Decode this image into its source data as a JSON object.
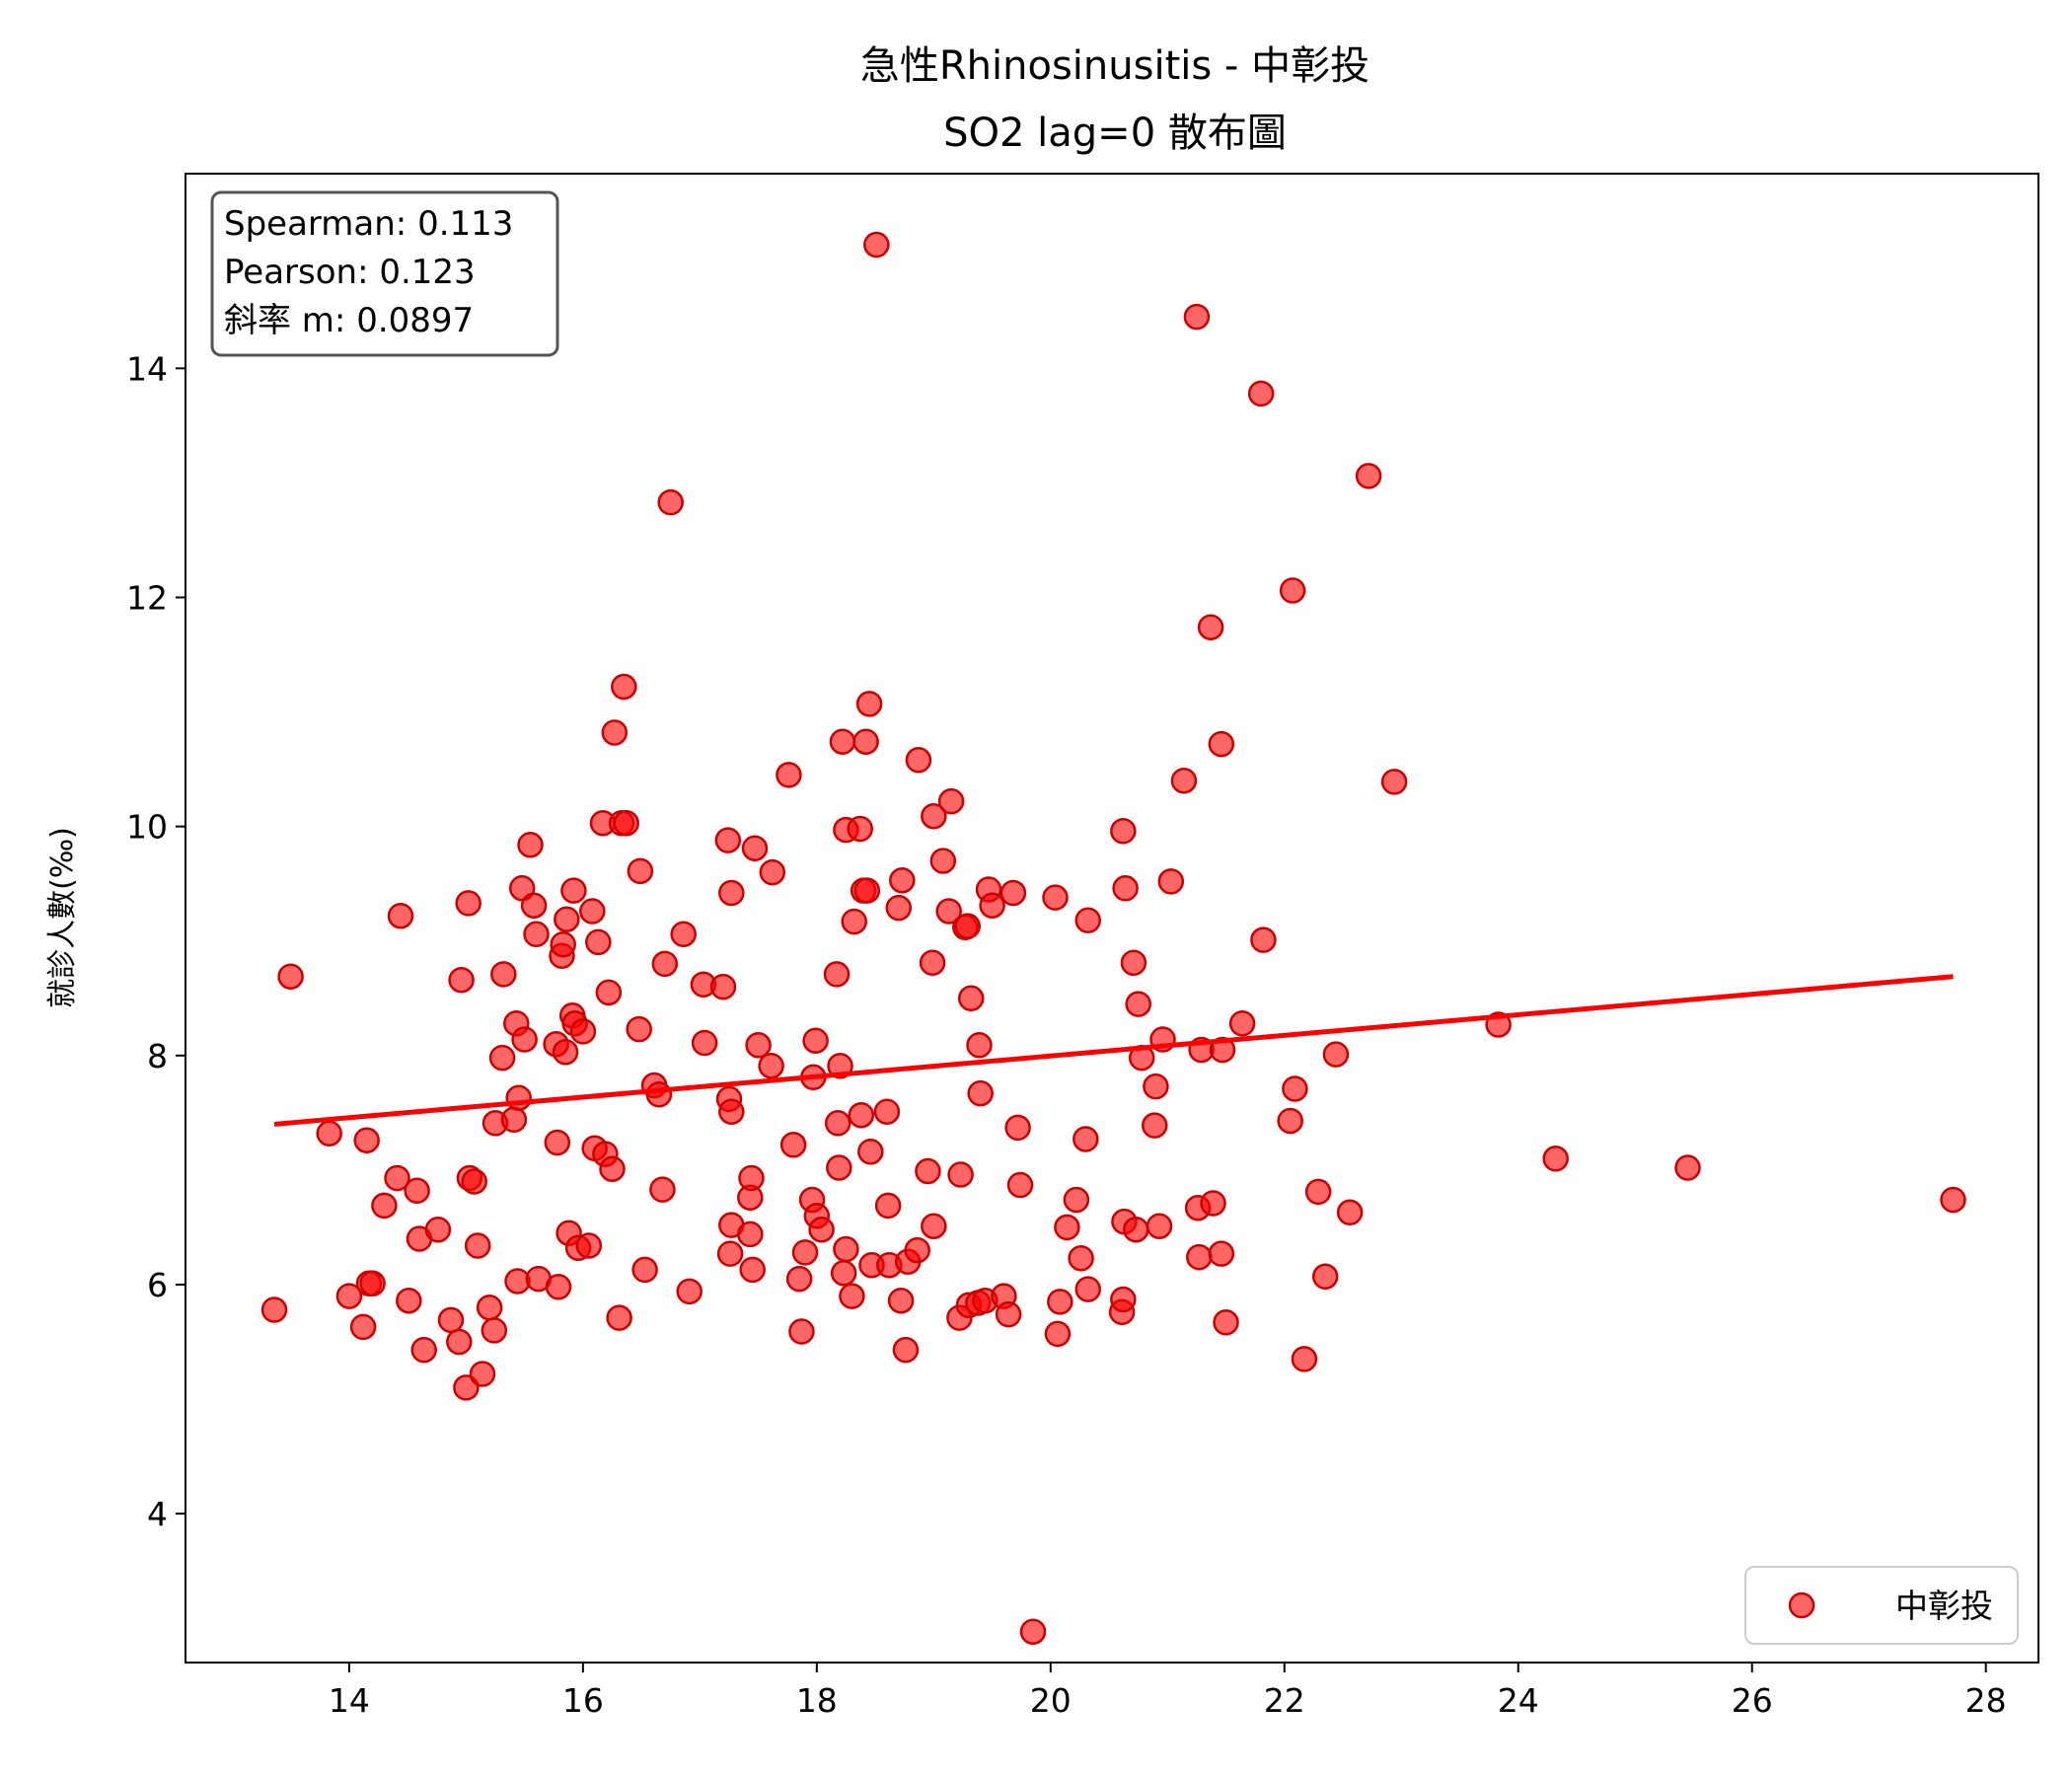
{
  "chart_data": {
    "type": "scatter",
    "title": "急性Rhinosinusitis - 中彰投",
    "subtitle": "SO2 lag=0 散布圖",
    "xlabel": "",
    "ylabel": "就診人數(‰)",
    "xlim": [
      12.6,
      28.45
    ],
    "ylim": [
      2.7,
      15.7
    ],
    "xticks": [
      14,
      16,
      18,
      20,
      22,
      24,
      26,
      28
    ],
    "yticks": [
      4,
      6,
      8,
      10,
      12,
      14
    ],
    "grid": false,
    "legend_position": "bottom-right",
    "stats": [
      "Spearman: 0.113",
      "Pearson: 0.123",
      "斜率 m: 0.0897"
    ],
    "colors": {
      "points": "#ff0000",
      "point_edge": "#cc0000",
      "trend": "#ff0000"
    },
    "trendline": {
      "x": [
        13.36,
        27.72
      ],
      "y": [
        7.4,
        8.69
      ]
    },
    "series": [
      {
        "name": "中彰投",
        "points": [
          [
            13.36,
            5.78
          ],
          [
            13.5,
            8.69
          ],
          [
            13.83,
            7.32
          ],
          [
            14.0,
            5.9
          ],
          [
            14.12,
            5.63
          ],
          [
            14.15,
            7.26
          ],
          [
            14.17,
            6.01
          ],
          [
            14.2,
            6.01
          ],
          [
            14.3,
            6.69
          ],
          [
            14.41,
            6.93
          ],
          [
            14.44,
            9.22
          ],
          [
            14.51,
            5.86
          ],
          [
            14.58,
            6.82
          ],
          [
            14.6,
            6.4
          ],
          [
            14.64,
            5.43
          ],
          [
            14.76,
            6.48
          ],
          [
            14.87,
            5.69
          ],
          [
            14.94,
            5.5
          ],
          [
            14.96,
            8.66
          ],
          [
            15.0,
            5.1
          ],
          [
            15.02,
            9.33
          ],
          [
            15.03,
            6.93
          ],
          [
            15.07,
            6.9
          ],
          [
            15.1,
            6.34
          ],
          [
            15.14,
            5.22
          ],
          [
            15.2,
            5.8
          ],
          [
            15.24,
            5.6
          ],
          [
            15.25,
            7.41
          ],
          [
            15.31,
            7.98
          ],
          [
            15.32,
            8.71
          ],
          [
            15.41,
            7.44
          ],
          [
            15.43,
            8.28
          ],
          [
            15.44,
            6.03
          ],
          [
            15.45,
            7.63
          ],
          [
            15.48,
            9.46
          ],
          [
            15.5,
            8.14
          ],
          [
            15.55,
            9.84
          ],
          [
            15.58,
            9.31
          ],
          [
            15.6,
            9.06
          ],
          [
            15.62,
            6.05
          ],
          [
            15.77,
            8.1
          ],
          [
            15.78,
            7.24
          ],
          [
            15.79,
            5.98
          ],
          [
            15.82,
            8.87
          ],
          [
            15.83,
            8.97
          ],
          [
            15.85,
            8.03
          ],
          [
            15.86,
            9.19
          ],
          [
            15.88,
            6.45
          ],
          [
            15.91,
            8.35
          ],
          [
            15.92,
            9.44
          ],
          [
            15.93,
            8.28
          ],
          [
            15.96,
            6.32
          ],
          [
            16.0,
            8.21
          ],
          [
            16.05,
            6.34
          ],
          [
            16.08,
            9.26
          ],
          [
            16.1,
            7.19
          ],
          [
            16.13,
            8.99
          ],
          [
            16.17,
            10.03
          ],
          [
            16.19,
            7.14
          ],
          [
            16.22,
            8.55
          ],
          [
            16.25,
            7.01
          ],
          [
            16.27,
            10.82
          ],
          [
            16.31,
            5.71
          ],
          [
            16.33,
            10.03
          ],
          [
            16.35,
            11.22
          ],
          [
            16.37,
            10.03
          ],
          [
            16.48,
            8.23
          ],
          [
            16.49,
            9.61
          ],
          [
            16.53,
            6.13
          ],
          [
            16.61,
            7.74
          ],
          [
            16.65,
            7.66
          ],
          [
            16.68,
            6.83
          ],
          [
            16.7,
            8.8
          ],
          [
            16.75,
            12.83
          ],
          [
            16.86,
            9.06
          ],
          [
            16.91,
            5.94
          ],
          [
            17.03,
            8.62
          ],
          [
            17.04,
            8.11
          ],
          [
            17.2,
            8.6
          ],
          [
            17.24,
            9.88
          ],
          [
            17.25,
            7.62
          ],
          [
            17.26,
            6.27
          ],
          [
            17.27,
            6.52
          ],
          [
            17.27,
            7.51
          ],
          [
            17.27,
            9.42
          ],
          [
            17.43,
            6.44
          ],
          [
            17.43,
            6.76
          ],
          [
            17.44,
            6.93
          ],
          [
            17.45,
            6.13
          ],
          [
            17.47,
            9.81
          ],
          [
            17.5,
            8.09
          ],
          [
            17.61,
            7.91
          ],
          [
            17.62,
            9.6
          ],
          [
            17.76,
            10.45
          ],
          [
            17.8,
            7.22
          ],
          [
            17.85,
            6.05
          ],
          [
            17.87,
            5.59
          ],
          [
            17.9,
            6.28
          ],
          [
            17.96,
            6.74
          ],
          [
            17.97,
            7.81
          ],
          [
            17.99,
            8.13
          ],
          [
            18.0,
            6.6
          ],
          [
            18.04,
            6.48
          ],
          [
            18.17,
            8.71
          ],
          [
            18.18,
            7.41
          ],
          [
            18.19,
            7.02
          ],
          [
            18.2,
            7.91
          ],
          [
            18.22,
            10.74
          ],
          [
            18.23,
            6.1
          ],
          [
            18.25,
            6.31
          ],
          [
            18.25,
            9.97
          ],
          [
            18.3,
            5.9
          ],
          [
            18.32,
            9.17
          ],
          [
            18.37,
            9.98
          ],
          [
            18.38,
            7.48
          ],
          [
            18.4,
            9.44
          ],
          [
            18.42,
            10.74
          ],
          [
            18.43,
            9.44
          ],
          [
            18.45,
            11.07
          ],
          [
            18.46,
            7.16
          ],
          [
            18.47,
            6.17
          ],
          [
            18.51,
            15.08
          ],
          [
            18.6,
            7.51
          ],
          [
            18.61,
            6.69
          ],
          [
            18.62,
            6.17
          ],
          [
            18.7,
            9.29
          ],
          [
            18.72,
            5.86
          ],
          [
            18.73,
            9.53
          ],
          [
            18.76,
            5.43
          ],
          [
            18.78,
            6.2
          ],
          [
            18.86,
            6.3
          ],
          [
            18.87,
            10.58
          ],
          [
            18.95,
            6.99
          ],
          [
            18.99,
            8.81
          ],
          [
            19.0,
            6.51
          ],
          [
            19.0,
            10.09
          ],
          [
            19.08,
            9.7
          ],
          [
            19.13,
            9.26
          ],
          [
            19.15,
            10.22
          ],
          [
            19.22,
            5.71
          ],
          [
            19.23,
            6.96
          ],
          [
            19.27,
            9.12
          ],
          [
            19.29,
            9.13
          ],
          [
            19.3,
            5.82
          ],
          [
            19.32,
            8.5
          ],
          [
            19.38,
            5.84
          ],
          [
            19.39,
            8.09
          ],
          [
            19.4,
            7.67
          ],
          [
            19.44,
            5.86
          ],
          [
            19.47,
            9.45
          ],
          [
            19.5,
            9.31
          ],
          [
            19.6,
            5.9
          ],
          [
            19.64,
            5.74
          ],
          [
            19.68,
            9.42
          ],
          [
            19.72,
            7.37
          ],
          [
            19.74,
            6.87
          ],
          [
            19.85,
            2.97
          ],
          [
            20.04,
            9.38
          ],
          [
            20.06,
            5.57
          ],
          [
            20.08,
            5.85
          ],
          [
            20.14,
            6.5
          ],
          [
            20.22,
            6.74
          ],
          [
            20.26,
            6.23
          ],
          [
            20.3,
            7.27
          ],
          [
            20.32,
            5.96
          ],
          [
            20.32,
            9.18
          ],
          [
            20.61,
            5.76
          ],
          [
            20.62,
            9.96
          ],
          [
            20.62,
            5.87
          ],
          [
            20.63,
            6.55
          ],
          [
            20.64,
            9.46
          ],
          [
            20.71,
            8.81
          ],
          [
            20.73,
            6.48
          ],
          [
            20.75,
            8.45
          ],
          [
            20.78,
            7.98
          ],
          [
            20.89,
            7.39
          ],
          [
            20.9,
            7.73
          ],
          [
            20.93,
            6.51
          ],
          [
            20.96,
            8.14
          ],
          [
            21.03,
            9.52
          ],
          [
            21.14,
            10.4
          ],
          [
            21.25,
            14.45
          ],
          [
            21.26,
            6.67
          ],
          [
            21.27,
            6.24
          ],
          [
            21.29,
            8.05
          ],
          [
            21.37,
            11.74
          ],
          [
            21.39,
            6.71
          ],
          [
            21.46,
            10.72
          ],
          [
            21.46,
            6.27
          ],
          [
            21.47,
            8.05
          ],
          [
            21.5,
            5.67
          ],
          [
            21.64,
            8.28
          ],
          [
            21.8,
            13.78
          ],
          [
            21.82,
            9.01
          ],
          [
            22.05,
            7.43
          ],
          [
            22.07,
            12.06
          ],
          [
            22.09,
            7.71
          ],
          [
            22.17,
            5.35
          ],
          [
            22.29,
            6.81
          ],
          [
            22.35,
            6.07
          ],
          [
            22.44,
            8.01
          ],
          [
            22.56,
            6.63
          ],
          [
            22.72,
            13.06
          ],
          [
            22.94,
            10.39
          ],
          [
            23.83,
            8.27
          ],
          [
            24.32,
            7.1
          ],
          [
            25.45,
            7.02
          ],
          [
            27.72,
            6.74
          ]
        ]
      }
    ]
  }
}
